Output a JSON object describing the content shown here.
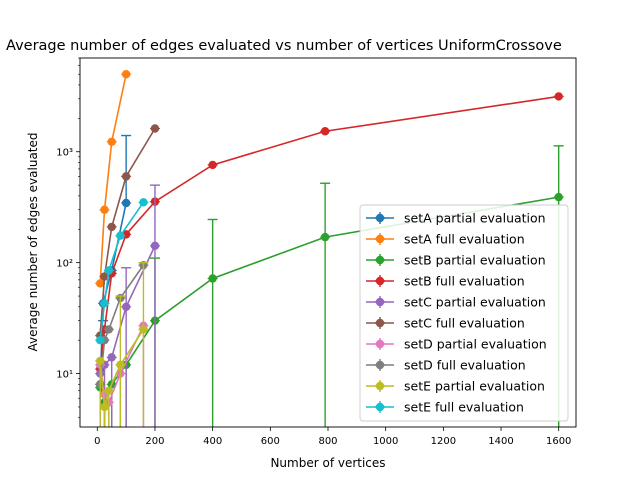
{
  "chart_data": {
    "type": "line",
    "title": "Average number of edges evaluated vs number of vertices UniformCrossove",
    "xlabel": "Number of vertices",
    "ylabel": "Average number of edges evaluated",
    "xlim": [
      -60,
      1660
    ],
    "ylim": [
      3.3,
      7000
    ],
    "yscale": "log",
    "grid": false,
    "legend_position": "lower-right",
    "x_ticks": [
      0,
      200,
      400,
      600,
      800,
      1000,
      1200,
      1400,
      1600
    ],
    "x_tick_labels": [
      "0",
      "200",
      "400",
      "600",
      "800",
      "1000",
      "1200",
      "1400",
      "1600"
    ],
    "y_ticks": [
      10,
      100,
      1000
    ],
    "y_tick_labels": [
      "10¹",
      "10²",
      "10³"
    ],
    "series": [
      {
        "name": "setA partial evaluation",
        "color": "#1f77b4",
        "x": [
          10,
          20,
          50,
          100
        ],
        "y": [
          8,
          43,
          85,
          345
        ],
        "err_low": [
          0,
          0,
          0,
          0
        ],
        "err_high": [
          0,
          30,
          0,
          1400
        ]
      },
      {
        "name": "setA full evaluation",
        "color": "#ff7f0e",
        "x": [
          10,
          25,
          50,
          100
        ],
        "y": [
          65,
          300,
          1230,
          5000
        ],
        "err_low": [
          0,
          0,
          0,
          0
        ],
        "err_high": [
          0,
          0,
          0,
          0
        ]
      },
      {
        "name": "setB partial evaluation",
        "color": "#2ca02c",
        "x": [
          10,
          25,
          50,
          100,
          200,
          400,
          790,
          1600
        ],
        "y": [
          7.5,
          5.5,
          8,
          12,
          30,
          72,
          170,
          390
        ],
        "err_low": [
          3.3,
          3.3,
          3.3,
          3.3,
          3.3,
          3.3,
          3.3,
          3.3
        ],
        "err_high": [
          0,
          0,
          0,
          0,
          110,
          245,
          520,
          1130
        ]
      },
      {
        "name": "setB full evaluation",
        "color": "#d62728",
        "x": [
          10,
          25,
          50,
          100,
          200,
          400,
          790,
          1600
        ],
        "y": [
          11,
          25,
          80,
          180,
          355,
          760,
          1530,
          3150
        ],
        "err_low": [
          0,
          0,
          0,
          0,
          0,
          0,
          0,
          0
        ],
        "err_high": [
          0,
          0,
          0,
          0,
          0,
          0,
          0,
          0
        ]
      },
      {
        "name": "setC partial evaluation",
        "color": "#9467bd",
        "x": [
          10,
          25,
          50,
          100,
          200
        ],
        "y": [
          10,
          12,
          14,
          40,
          142
        ],
        "err_low": [
          3.3,
          3.3,
          3.3,
          3.3,
          3.3
        ],
        "err_high": [
          0,
          0,
          0,
          90,
          500
        ]
      },
      {
        "name": "setC full evaluation",
        "color": "#8c564b",
        "x": [
          10,
          25,
          50,
          100,
          200
        ],
        "y": [
          22,
          75,
          210,
          600,
          1620
        ],
        "err_low": [
          0,
          0,
          0,
          0,
          0
        ],
        "err_high": [
          0,
          0,
          0,
          0,
          0
        ]
      },
      {
        "name": "setD partial evaluation",
        "color": "#e377c2",
        "x": [
          10,
          25,
          40,
          80,
          160
        ],
        "y": [
          12,
          6.5,
          5.5,
          10,
          27
        ],
        "err_low": [
          3.3,
          3.3,
          3.3,
          3.3,
          3.3
        ],
        "err_high": [
          0,
          0,
          0,
          0,
          0
        ]
      },
      {
        "name": "setD full evaluation",
        "color": "#7f7f7f",
        "x": [
          10,
          25,
          40,
          80,
          160
        ],
        "y": [
          8,
          20,
          25,
          48,
          95
        ],
        "err_low": [
          0,
          0,
          0,
          0,
          0
        ],
        "err_high": [
          0,
          0,
          0,
          0,
          0
        ]
      },
      {
        "name": "setE partial evaluation",
        "color": "#bcbd22",
        "x": [
          10,
          25,
          40,
          80,
          160
        ],
        "y": [
          13,
          5,
          7,
          12,
          25
        ],
        "err_low": [
          3.3,
          3.3,
          3.3,
          3.3,
          3.3
        ],
        "err_high": [
          0,
          0,
          0,
          50,
          100
        ]
      },
      {
        "name": "setE full evaluation",
        "color": "#17becf",
        "x": [
          10,
          25,
          40,
          80,
          160
        ],
        "y": [
          20,
          43,
          85,
          175,
          350
        ],
        "err_low": [
          0,
          0,
          0,
          0,
          0
        ],
        "err_high": [
          0,
          0,
          0,
          0,
          0
        ]
      }
    ]
  }
}
